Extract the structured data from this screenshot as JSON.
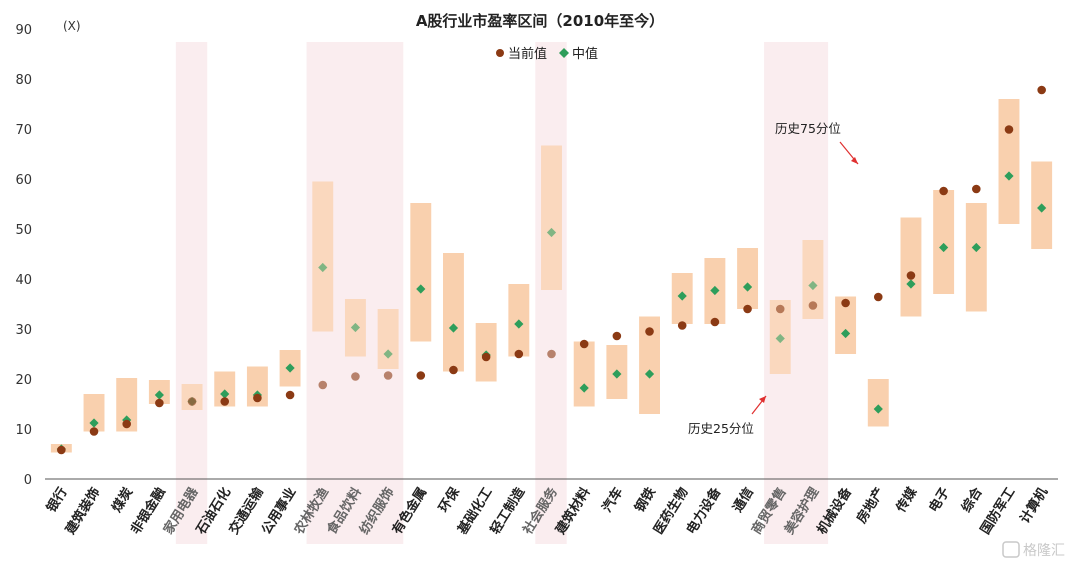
{
  "chart_data": {
    "type": "range-dot",
    "title": "A股行业市盈率区间（2010年至今）",
    "unit_label": "(X)",
    "ylim": [
      0,
      90
    ],
    "yticks": [
      0,
      10,
      20,
      30,
      40,
      50,
      60,
      70,
      80,
      90
    ],
    "legend": [
      {
        "name": "当前值",
        "color": "#8B3A14",
        "shape": "circle"
      },
      {
        "name": "中值",
        "color": "#2E9E5B",
        "shape": "diamond"
      }
    ],
    "range_color": "#F9D0AE",
    "highlight_color": "#FAEDEF",
    "categories": [
      "银行",
      "建筑装饰",
      "煤炭",
      "非银金融",
      "家用电器",
      "石油石化",
      "交通运输",
      "公用事业",
      "农林牧渔",
      "食品饮料",
      "纺织服饰",
      "有色金属",
      "环保",
      "基础化工",
      "轻工制造",
      "社会服务",
      "建筑材料",
      "汽车",
      "钢铁",
      "医药生物",
      "电力设备",
      "通信",
      "商贸零售",
      "美容护理",
      "机械设备",
      "房地产",
      "传媒",
      "电子",
      "综合",
      "国防军工",
      "计算机"
    ],
    "highlighted": [
      "家用电器",
      "农林牧渔",
      "食品饮料",
      "纺织服饰",
      "社会服务",
      "商贸零售",
      "美容护理"
    ],
    "p25": [
      5.3,
      9.5,
      9.5,
      15.0,
      13.8,
      14.5,
      14.5,
      18.5,
      29.5,
      24.5,
      22.0,
      27.5,
      21.5,
      19.5,
      24.5,
      37.8,
      14.5,
      16.0,
      13.0,
      31.0,
      31.0,
      34.0,
      21.0,
      32.0,
      25.0,
      10.5,
      32.5,
      37.0,
      33.5,
      51.0,
      46.0
    ],
    "p75": [
      7.0,
      17.0,
      20.2,
      19.8,
      19.0,
      21.5,
      22.5,
      25.8,
      59.5,
      36.0,
      34.0,
      55.2,
      45.2,
      31.2,
      39.0,
      66.7,
      27.5,
      26.8,
      32.5,
      41.2,
      44.2,
      46.2,
      35.8,
      47.8,
      36.5,
      20.0,
      52.3,
      57.8,
      55.2,
      76.0,
      63.5
    ],
    "median": [
      6.0,
      11.2,
      11.8,
      16.8,
      15.5,
      17.0,
      16.8,
      22.2,
      42.3,
      30.3,
      25.0,
      38.0,
      30.2,
      24.8,
      31.0,
      49.3,
      18.2,
      21.0,
      21.0,
      36.6,
      37.7,
      38.4,
      28.1,
      38.7,
      29.1,
      14.0,
      39.0,
      46.3,
      46.3,
      60.6,
      54.2
    ],
    "current": [
      5.8,
      9.5,
      11.0,
      15.2,
      15.5,
      15.5,
      16.2,
      16.8,
      18.8,
      20.5,
      20.7,
      20.7,
      21.8,
      24.4,
      25.0,
      25.0,
      27.0,
      28.6,
      29.5,
      30.7,
      31.4,
      34.0,
      34.0,
      34.7,
      35.2,
      36.4,
      40.7,
      57.6,
      58.0,
      69.9,
      77.8
    ],
    "annotations": {
      "p75_label": "历史75分位",
      "p25_label": "历史25分位"
    }
  },
  "watermark": "格隆汇"
}
